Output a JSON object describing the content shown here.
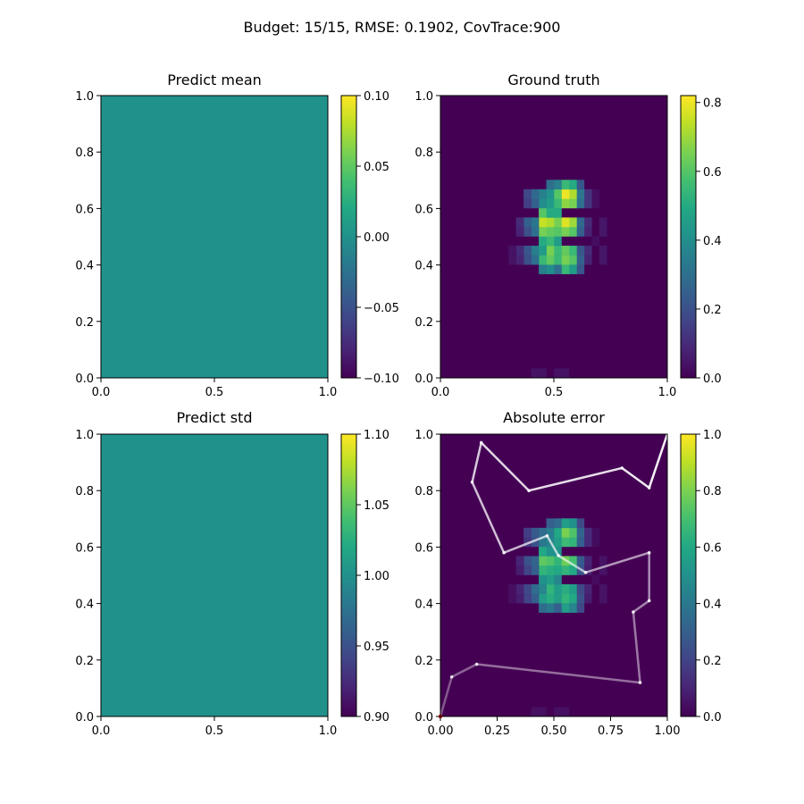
{
  "figure": {
    "suptitle": "Budget: 15/15,  RMSE: 0.1902, CovTrace:900"
  },
  "chart_data": [
    {
      "type": "heatmap",
      "id": "mean",
      "title": "Predict mean",
      "xlim": [
        0,
        1
      ],
      "ylim": [
        0,
        1
      ],
      "xticks": [
        0.0,
        0.5,
        1.0
      ],
      "xtick_labels": [
        "0.0",
        "0.5",
        "1.0"
      ],
      "yticks": [
        0.0,
        0.2,
        0.4,
        0.6,
        0.8,
        1.0
      ],
      "ytick_labels": [
        "0.0",
        "0.2",
        "0.4",
        "0.6",
        "0.8",
        "1.0"
      ],
      "colormap": "viridis",
      "color_range": [
        -0.1,
        0.1
      ],
      "colorbar_ticks": [
        -0.1,
        -0.05,
        0.0,
        0.05,
        0.1
      ],
      "colorbar_tick_labels": [
        "−0.10",
        "−0.05",
        "0.00",
        "0.05",
        "0.10"
      ],
      "value": 0.0
    },
    {
      "type": "heatmap",
      "id": "truth",
      "title": "Ground truth",
      "xlim": [
        0,
        1
      ],
      "ylim": [
        0,
        1
      ],
      "xticks": [
        0.0,
        0.5,
        1.0
      ],
      "xtick_labels": [
        "0.0",
        "0.5",
        "1.0"
      ],
      "yticks": [
        0.0,
        0.2,
        0.4,
        0.6,
        0.8,
        1.0
      ],
      "ytick_labels": [
        "0.0",
        "0.2",
        "0.4",
        "0.6",
        "0.8",
        "1.0"
      ],
      "colormap": "viridis",
      "color_range": [
        0,
        0.82
      ],
      "colorbar_ticks": [
        0.0,
        0.2,
        0.4,
        0.6,
        0.8
      ],
      "colorbar_tick_labels": [
        "0.0",
        "0.2",
        "0.4",
        "0.6",
        "0.8"
      ],
      "grid_size": [
        30,
        30
      ],
      "cells": [
        [
          12,
          21,
          0.05
        ],
        [
          13,
          21,
          0.05
        ],
        [
          15,
          21,
          0.05
        ],
        [
          16,
          21,
          0.05
        ],
        [
          14,
          20,
          0.03
        ],
        [
          18,
          20,
          0.03
        ],
        [
          19,
          20,
          0.03
        ],
        [
          12,
          19,
          0.08
        ],
        [
          13,
          19,
          0.1
        ],
        [
          15,
          19,
          0.08
        ],
        [
          16,
          19,
          0.1
        ],
        [
          18,
          19,
          0.12
        ],
        [
          19,
          19,
          0.12
        ],
        [
          11,
          18,
          0.22
        ],
        [
          12,
          18,
          0.25
        ],
        [
          13,
          18,
          0.22
        ],
        [
          15,
          18,
          0.25
        ],
        [
          16,
          18,
          0.28
        ],
        [
          18,
          18,
          0.3
        ],
        [
          19,
          18,
          0.32
        ],
        [
          20,
          18,
          0.22
        ],
        [
          11,
          17,
          0.45
        ],
        [
          12,
          17,
          0.6
        ],
        [
          13,
          17,
          0.55
        ],
        [
          15,
          17,
          0.6
        ],
        [
          16,
          17,
          0.7
        ],
        [
          18,
          17,
          0.65
        ],
        [
          19,
          17,
          0.72
        ],
        [
          20,
          17,
          0.5
        ],
        [
          11,
          16,
          0.55
        ],
        [
          12,
          16,
          0.65
        ],
        [
          13,
          16,
          0.62
        ],
        [
          15,
          16,
          0.65
        ],
        [
          16,
          16,
          0.78
        ],
        [
          18,
          16,
          0.68
        ],
        [
          19,
          16,
          0.8
        ],
        [
          20,
          16,
          0.55
        ],
        [
          11,
          15,
          0.3
        ],
        [
          12,
          15,
          0.55
        ],
        [
          13,
          15,
          0.55
        ],
        [
          14,
          15,
          0.45
        ],
        [
          15,
          15,
          0.6
        ],
        [
          16,
          15,
          0.65
        ],
        [
          17,
          15,
          0.5
        ],
        [
          18,
          15,
          0.55
        ],
        [
          19,
          15,
          0.6
        ],
        [
          20,
          15,
          0.35
        ],
        [
          11,
          14,
          0.4
        ],
        [
          12,
          14,
          0.62
        ],
        [
          13,
          14,
          0.65
        ],
        [
          14,
          14,
          0.55
        ],
        [
          15,
          14,
          0.62
        ],
        [
          16,
          14,
          0.72
        ],
        [
          17,
          14,
          0.5
        ],
        [
          18,
          14,
          0.45
        ],
        [
          19,
          14,
          0.42
        ],
        [
          20,
          14,
          0.3
        ],
        [
          11,
          13,
          0.35
        ],
        [
          12,
          13,
          0.55
        ],
        [
          13,
          13,
          0.45
        ],
        [
          14,
          13,
          0.5
        ],
        [
          15,
          13,
          0.65
        ],
        [
          16,
          13,
          0.75
        ],
        [
          17,
          13,
          0.6
        ],
        [
          18,
          13,
          0.4
        ],
        [
          19,
          13,
          0.35
        ],
        [
          12,
          12,
          0.3
        ],
        [
          13,
          12,
          0.35
        ],
        [
          15,
          12,
          0.3
        ],
        [
          16,
          12,
          0.32
        ],
        [
          18,
          12,
          0.25
        ],
        [
          19,
          12,
          0.28
        ],
        [
          12,
          11,
          0.2
        ],
        [
          13,
          11,
          0.22
        ],
        [
          15,
          11,
          0.2
        ],
        [
          16,
          11,
          0.25
        ],
        [
          18,
          11,
          0.15
        ],
        [
          19,
          11,
          0.18
        ],
        [
          12,
          10,
          0.08
        ],
        [
          13,
          10,
          0.1
        ],
        [
          15,
          10,
          0.08
        ],
        [
          16,
          10,
          0.1
        ],
        [
          12,
          9,
          0.04
        ],
        [
          13,
          9,
          0.04
        ]
      ],
      "cells_bottom": [
        [
          0,
          12,
          0.04
        ],
        [
          0,
          13,
          0.04
        ],
        [
          0,
          15,
          0.04
        ],
        [
          0,
          16,
          0.04
        ]
      ]
    },
    {
      "type": "heatmap",
      "id": "std",
      "title": "Predict std",
      "xlim": [
        0,
        1
      ],
      "ylim": [
        0,
        1
      ],
      "xticks": [
        0.0,
        0.5,
        1.0
      ],
      "xtick_labels": [
        "0.0",
        "0.5",
        "1.0"
      ],
      "yticks": [
        0.0,
        0.2,
        0.4,
        0.6,
        0.8,
        1.0
      ],
      "ytick_labels": [
        "0.0",
        "0.2",
        "0.4",
        "0.6",
        "0.8",
        "1.0"
      ],
      "colormap": "viridis",
      "color_range": [
        0.9,
        1.1
      ],
      "colorbar_ticks": [
        0.9,
        0.95,
        1.0,
        1.05,
        1.1
      ],
      "colorbar_tick_labels": [
        "0.90",
        "0.95",
        "1.00",
        "1.05",
        "1.10"
      ],
      "value": 1.0
    },
    {
      "type": "heatmap",
      "id": "error",
      "title": "Absolute error",
      "xlim": [
        0,
        1
      ],
      "ylim": [
        0,
        1
      ],
      "xticks": [
        0.0,
        0.25,
        0.5,
        0.75,
        1.0
      ],
      "xtick_labels": [
        "0.00",
        "0.25",
        "0.50",
        "0.75",
        "1.00"
      ],
      "yticks": [
        0.0,
        0.2,
        0.4,
        0.6,
        0.8,
        1.0
      ],
      "ytick_labels": [
        "0.0",
        "0.2",
        "0.4",
        "0.6",
        "0.8",
        "1.0"
      ],
      "colormap": "viridis",
      "color_range": [
        0,
        1.0
      ],
      "colorbar_ticks": [
        0.0,
        0.2,
        0.4,
        0.6,
        0.8,
        1.0
      ],
      "colorbar_tick_labels": [
        "0.0",
        "0.2",
        "0.4",
        "0.6",
        "0.8",
        "1.0"
      ],
      "uses_cells_of": "truth",
      "path": {
        "color": "#ffffff",
        "points": [
          [
            0.0,
            0.0
          ],
          [
            0.05,
            0.14
          ],
          [
            0.16,
            0.185
          ],
          [
            0.88,
            0.12
          ],
          [
            0.85,
            0.37
          ],
          [
            0.92,
            0.41
          ],
          [
            0.92,
            0.58
          ],
          [
            0.64,
            0.51
          ],
          [
            0.52,
            0.57
          ],
          [
            0.47,
            0.64
          ],
          [
            0.28,
            0.58
          ],
          [
            0.14,
            0.83
          ],
          [
            0.18,
            0.97
          ],
          [
            0.39,
            0.8
          ],
          [
            0.8,
            0.88
          ],
          [
            0.92,
            0.81
          ],
          [
            1.0,
            1.0
          ]
        ],
        "start_marker_color": "#ff0000"
      }
    }
  ]
}
